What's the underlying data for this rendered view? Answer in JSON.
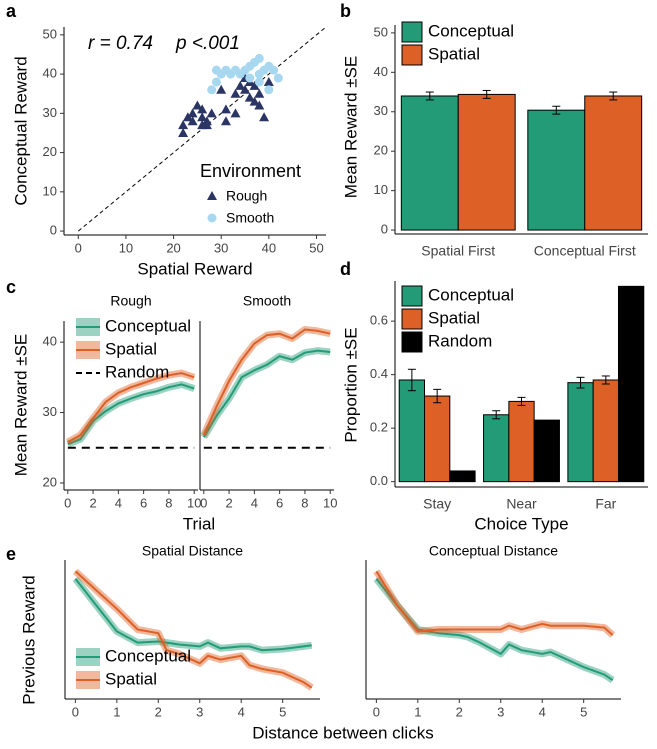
{
  "chart_data": [
    {
      "type": "scatter",
      "label": "a",
      "annotations": [
        "r = 0.74",
        "p <.001"
      ],
      "xlabel": "Spatial Reward",
      "ylabel": "Conceptual Reward",
      "xlim": [
        -3,
        52
      ],
      "ylim": [
        -1,
        52
      ],
      "xticks": [
        0,
        10,
        20,
        30,
        40,
        50
      ],
      "yticks": [
        0,
        10,
        20,
        30,
        40,
        50
      ],
      "legend_title": "Environment",
      "series": [
        {
          "name": "Rough",
          "color": "#2b3563",
          "marker": "triangle",
          "x": [
            22,
            22,
            23,
            24,
            24,
            25,
            26,
            26,
            27,
            28,
            27,
            31,
            31,
            33,
            34,
            35,
            35,
            36,
            37,
            37,
            38,
            38,
            39,
            36,
            30,
            33,
            40,
            26
          ],
          "y": [
            25,
            27,
            29,
            30,
            28,
            32,
            31,
            29,
            28,
            30,
            27,
            31,
            28,
            35,
            37,
            36,
            39,
            38,
            37,
            33,
            35,
            32,
            29,
            34,
            36,
            30,
            38,
            27
          ]
        },
        {
          "name": "Smooth",
          "color": "#a8d8f0",
          "marker": "circle",
          "x": [
            28,
            29,
            30,
            31,
            33,
            34,
            35,
            36,
            37,
            38,
            38,
            39,
            40,
            41,
            42,
            36,
            38,
            40,
            29,
            32
          ],
          "y": [
            36,
            38,
            40,
            41,
            41,
            40,
            41,
            42,
            43,
            44,
            40,
            41,
            42,
            41,
            39,
            39,
            38,
            36,
            41,
            40
          ]
        }
      ]
    },
    {
      "type": "bar",
      "label": "b",
      "ylabel": "Mean Reward ±SE",
      "categories": [
        "Spatial First",
        "Conceptual First"
      ],
      "ylim": [
        -1,
        52
      ],
      "yticks": [
        0,
        10,
        20,
        30,
        40,
        50
      ],
      "series": [
        {
          "name": "Conceptual",
          "color": "#239b76",
          "values": [
            34.0,
            30.4
          ],
          "errors": [
            1.0,
            1.0
          ]
        },
        {
          "name": "Spatial",
          "color": "#dd6126",
          "values": [
            34.4,
            34.0
          ],
          "errors": [
            1.0,
            1.0
          ]
        }
      ]
    },
    {
      "type": "line",
      "label": "c",
      "ylabel": "Mean Reward ±SE",
      "xlabel": "Trial",
      "x": [
        0,
        1,
        2,
        3,
        4,
        5,
        6,
        7,
        8,
        9,
        10
      ],
      "xlim": [
        -0.3,
        10.3
      ],
      "xticks": [
        0,
        2,
        4,
        6,
        8,
        10
      ],
      "ylim": [
        19,
        43
      ],
      "yticks": [
        20,
        30,
        40
      ],
      "facets": [
        {
          "title": "Rough",
          "series": [
            {
              "name": "Conceptual",
              "color": "#239b76",
              "values": [
                25.5,
                26.2,
                28.8,
                30.2,
                31.3,
                32.0,
                32.6,
                33.0,
                33.6,
                34.0,
                33.4
              ]
            },
            {
              "name": "Spatial",
              "color": "#dd6126",
              "values": [
                25.8,
                26.8,
                29.2,
                31.5,
                32.8,
                33.6,
                34.2,
                34.8,
                35.3,
                35.6,
                35.0
              ]
            },
            {
              "name": "Random",
              "color": "#000000",
              "linestyle": "dashed",
              "values": [
                25,
                25,
                25,
                25,
                25,
                25,
                25,
                25,
                25,
                25,
                25
              ]
            }
          ]
        },
        {
          "title": "Smooth",
          "series": [
            {
              "name": "Conceptual",
              "color": "#239b76",
              "values": [
                26.5,
                29.5,
                32.0,
                35.0,
                36.0,
                36.8,
                38.0,
                37.5,
                38.5,
                38.8,
                38.6
              ]
            },
            {
              "name": "Spatial",
              "color": "#dd6126",
              "values": [
                26.8,
                30.8,
                34.5,
                37.5,
                39.8,
                41.0,
                41.2,
                40.5,
                41.8,
                41.6,
                41.2
              ]
            },
            {
              "name": "Random",
              "color": "#000000",
              "linestyle": "dashed",
              "values": [
                25,
                25,
                25,
                25,
                25,
                25,
                25,
                25,
                25,
                25,
                25
              ]
            }
          ]
        }
      ]
    },
    {
      "type": "bar",
      "label": "d",
      "ylabel": "Proportion ±SE",
      "xlabel": "Choice Type",
      "categories": [
        "Stay",
        "Near",
        "Far"
      ],
      "ylim": [
        -0.02,
        0.75
      ],
      "yticks": [
        {
          "value": 0,
          "label": "0.0"
        },
        0.2,
        0.4,
        0.6
      ],
      "series": [
        {
          "name": "Conceptual",
          "color": "#239b76",
          "values": [
            0.38,
            0.25,
            0.37
          ],
          "errors": [
            0.04,
            0.015,
            0.02
          ]
        },
        {
          "name": "Spatial",
          "color": "#dd6126",
          "values": [
            0.32,
            0.3,
            0.38
          ],
          "errors": [
            0.025,
            0.015,
            0.015
          ]
        },
        {
          "name": "Random",
          "color": "#000000",
          "values": [
            0.04,
            0.23,
            0.73
          ]
        }
      ]
    },
    {
      "type": "line",
      "label": "e",
      "ylabel": "Previous Reward",
      "xlabel": "Distance between clicks",
      "x": [
        0,
        0.5,
        1,
        1.5,
        2,
        2.2,
        2.5,
        3,
        3.2,
        3.5,
        4,
        4.2,
        4.5,
        5,
        5.5,
        5.7
      ],
      "xlim": [
        -0.25,
        5.9
      ],
      "xticks": [
        0,
        1,
        2,
        3,
        4,
        5
      ],
      "ylim": [
        10,
        47
      ],
      "facets": [
        {
          "title": "Spatial Distance",
          "series": [
            {
              "name": "Conceptual",
              "color": "#239b76",
              "values": [
                42,
                35,
                28,
                25,
                25.3,
                25,
                24.5,
                24,
                25,
                23.5,
                24,
                24,
                23,
                23.3,
                24,
                24.3
              ]
            },
            {
              "name": "Spatial",
              "color": "#dd6126",
              "values": [
                44,
                39,
                34,
                28.5,
                27.5,
                23,
                22,
                19.5,
                21.5,
                20.5,
                21.5,
                19,
                18,
                17,
                14.5,
                13
              ]
            }
          ]
        },
        {
          "title": "Conceptual Distance",
          "series": [
            {
              "name": "Conceptual",
              "color": "#239b76",
              "values": [
                42,
                35,
                28.5,
                27.5,
                27,
                26.5,
                25,
                22,
                24.5,
                23,
                22,
                22.5,
                21,
                18.5,
                16.5,
                15
              ]
            },
            {
              "name": "Spatial",
              "color": "#dd6126",
              "values": [
                44,
                35,
                28,
                28.5,
                28.5,
                28.5,
                28.5,
                28.5,
                29.5,
                28.5,
                30,
                29.5,
                29.5,
                29.5,
                29,
                27
              ]
            }
          ]
        }
      ]
    }
  ]
}
